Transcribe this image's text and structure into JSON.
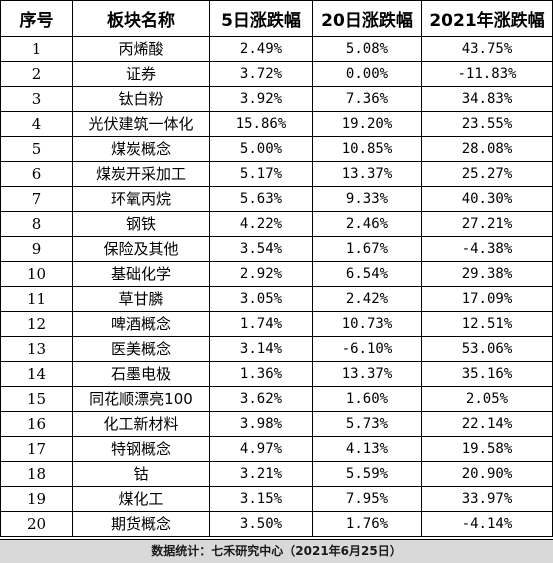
{
  "table": {
    "headers": [
      "序号",
      "板块名称",
      "5日涨跌幅",
      "20日涨跌幅",
      "2021年涨跌幅"
    ],
    "rows": [
      [
        "1",
        "丙烯酸",
        "2.49%",
        "5.08%",
        "43.75%"
      ],
      [
        "2",
        "证券",
        "3.72%",
        "0.00%",
        "-11.83%"
      ],
      [
        "3",
        "钛白粉",
        "3.92%",
        "7.36%",
        "34.83%"
      ],
      [
        "4",
        "光伏建筑一体化",
        "15.86%",
        "19.20%",
        "23.55%"
      ],
      [
        "5",
        "煤炭概念",
        "5.00%",
        "10.85%",
        "28.08%"
      ],
      [
        "6",
        "煤炭开采加工",
        "5.17%",
        "13.37%",
        "25.27%"
      ],
      [
        "7",
        "环氧丙烷",
        "5.63%",
        "9.33%",
        "40.30%"
      ],
      [
        "8",
        "钢铁",
        "4.22%",
        "2.46%",
        "27.21%"
      ],
      [
        "9",
        "保险及其他",
        "3.54%",
        "1.67%",
        "-4.38%"
      ],
      [
        "10",
        "基础化学",
        "2.92%",
        "6.54%",
        "29.38%"
      ],
      [
        "11",
        "草甘膦",
        "3.05%",
        "2.42%",
        "17.09%"
      ],
      [
        "12",
        "啤酒概念",
        "1.74%",
        "10.73%",
        "12.51%"
      ],
      [
        "13",
        "医美概念",
        "3.14%",
        "-6.10%",
        "53.06%"
      ],
      [
        "14",
        "石墨电极",
        "1.36%",
        "13.37%",
        "35.16%"
      ],
      [
        "15",
        "同花顺漂亮100",
        "3.62%",
        "1.60%",
        "2.05%"
      ],
      [
        "16",
        "化工新材料",
        "3.98%",
        "5.73%",
        "22.14%"
      ],
      [
        "17",
        "特钢概念",
        "4.97%",
        "4.13%",
        "19.58%"
      ],
      [
        "18",
        "钴",
        "3.21%",
        "5.59%",
        "20.90%"
      ],
      [
        "19",
        "煤化工",
        "3.15%",
        "7.95%",
        "33.97%"
      ],
      [
        "20",
        "期货概念",
        "3.50%",
        "1.76%",
        "-4.14%"
      ]
    ]
  },
  "footer": {
    "text": "数据统计：七禾研究中心（2021年6月25日）"
  }
}
